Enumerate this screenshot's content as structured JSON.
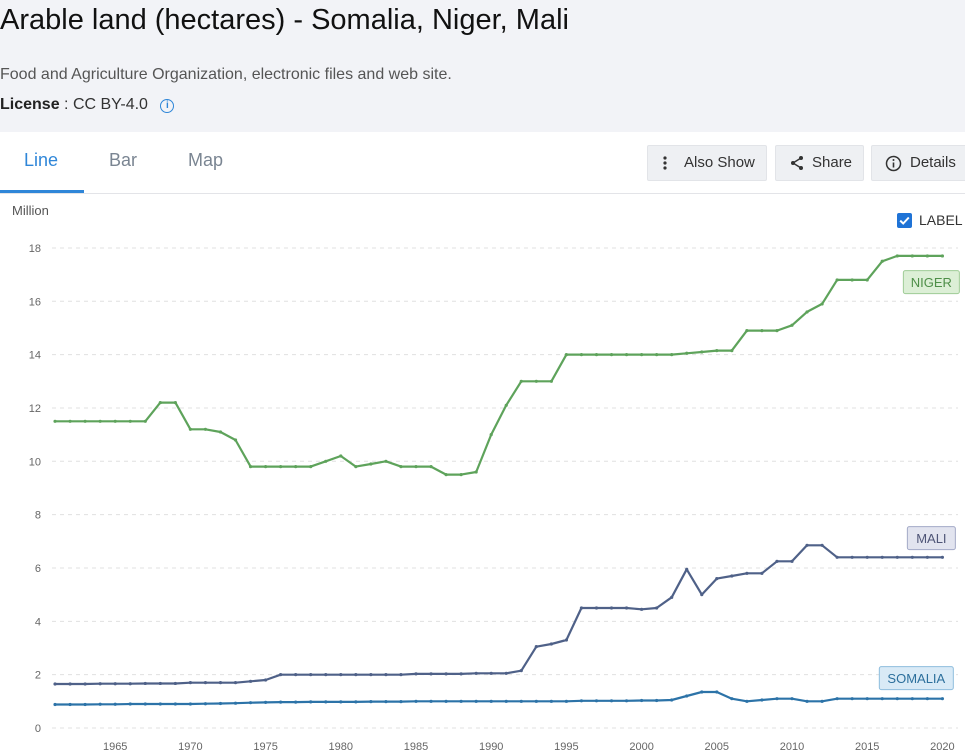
{
  "header": {
    "title": "Arable land (hectares) - Somalia, Niger, Mali",
    "source": "Food and Agriculture Organization, electronic files and web site.",
    "license_label": "License",
    "license_value": ": CC BY-4.0"
  },
  "tabs": [
    {
      "label": "Line",
      "active": true
    },
    {
      "label": "Bar",
      "active": false
    },
    {
      "label": "Map",
      "active": false
    }
  ],
  "actions": {
    "also_show": "Also Show",
    "share": "Share",
    "details": "Details"
  },
  "label_toggle": {
    "text": "LABEL",
    "checked": true
  },
  "colors": {
    "accent": "#2f86d8",
    "niger": "#5ea35b",
    "mali": "#4f6188",
    "somalia": "#2c73a8"
  },
  "chart_data": {
    "type": "line",
    "ylabel": "Million",
    "ylim": [
      0,
      18
    ],
    "xlim": [
      1961,
      2020
    ],
    "yticks": [
      0,
      2,
      4,
      6,
      8,
      10,
      12,
      14,
      16,
      18
    ],
    "xticks": [
      1965,
      1970,
      1975,
      1980,
      1985,
      1990,
      1995,
      2000,
      2005,
      2010,
      2015,
      2020
    ],
    "grid": "horizontal dashed",
    "x": [
      1961,
      1962,
      1963,
      1964,
      1965,
      1966,
      1967,
      1968,
      1969,
      1970,
      1971,
      1972,
      1973,
      1974,
      1975,
      1976,
      1977,
      1978,
      1979,
      1980,
      1981,
      1982,
      1983,
      1984,
      1985,
      1986,
      1987,
      1988,
      1989,
      1990,
      1991,
      1992,
      1993,
      1994,
      1995,
      1996,
      1997,
      1998,
      1999,
      2000,
      2001,
      2002,
      2003,
      2004,
      2005,
      2006,
      2007,
      2008,
      2009,
      2010,
      2011,
      2012,
      2013,
      2014,
      2015,
      2016,
      2017,
      2018,
      2019,
      2020
    ],
    "series": [
      {
        "name": "NIGER",
        "key": "niger",
        "values": [
          11.5,
          11.5,
          11.5,
          11.5,
          11.5,
          11.5,
          11.5,
          12.2,
          12.2,
          11.2,
          11.2,
          11.1,
          10.8,
          9.8,
          9.8,
          9.8,
          9.8,
          9.8,
          10.0,
          10.2,
          9.8,
          9.9,
          10.0,
          9.8,
          9.8,
          9.8,
          9.5,
          9.5,
          9.6,
          11.0,
          12.1,
          13.0,
          13.0,
          13.0,
          14.0,
          14.0,
          14.0,
          14.0,
          14.0,
          14.0,
          14.0,
          14.0,
          14.05,
          14.1,
          14.15,
          14.15,
          14.9,
          14.9,
          14.9,
          15.1,
          15.6,
          15.9,
          16.8,
          16.8,
          16.8,
          17.5,
          17.7,
          17.7,
          17.7,
          17.7
        ]
      },
      {
        "name": "MALI",
        "key": "mali",
        "values": [
          1.65,
          1.65,
          1.65,
          1.66,
          1.66,
          1.66,
          1.67,
          1.67,
          1.67,
          1.7,
          1.7,
          1.7,
          1.7,
          1.75,
          1.8,
          2.0,
          2.0,
          2.0,
          2.0,
          2.0,
          2.0,
          2.0,
          2.0,
          2.0,
          2.03,
          2.03,
          2.03,
          2.03,
          2.05,
          2.05,
          2.05,
          2.15,
          3.05,
          3.15,
          3.3,
          4.5,
          4.5,
          4.5,
          4.5,
          4.45,
          4.5,
          4.9,
          5.95,
          5.0,
          5.6,
          5.7,
          5.8,
          5.8,
          6.25,
          6.25,
          6.85,
          6.85,
          6.4,
          6.4,
          6.4,
          6.4,
          6.4,
          6.4,
          6.4,
          6.4
        ]
      },
      {
        "name": "SOMALIA",
        "key": "somalia",
        "values": [
          0.88,
          0.88,
          0.88,
          0.89,
          0.89,
          0.9,
          0.9,
          0.9,
          0.9,
          0.9,
          0.91,
          0.92,
          0.93,
          0.95,
          0.96,
          0.97,
          0.97,
          0.98,
          0.98,
          0.98,
          0.98,
          0.99,
          0.99,
          0.99,
          1.0,
          1.0,
          1.0,
          1.0,
          1.0,
          1.0,
          1.0,
          1.0,
          1.0,
          1.0,
          1.0,
          1.02,
          1.02,
          1.02,
          1.02,
          1.03,
          1.03,
          1.05,
          1.2,
          1.35,
          1.35,
          1.1,
          1.0,
          1.05,
          1.1,
          1.1,
          1.0,
          1.0,
          1.1,
          1.1,
          1.1,
          1.1,
          1.1,
          1.1,
          1.1,
          1.1
        ]
      }
    ]
  }
}
